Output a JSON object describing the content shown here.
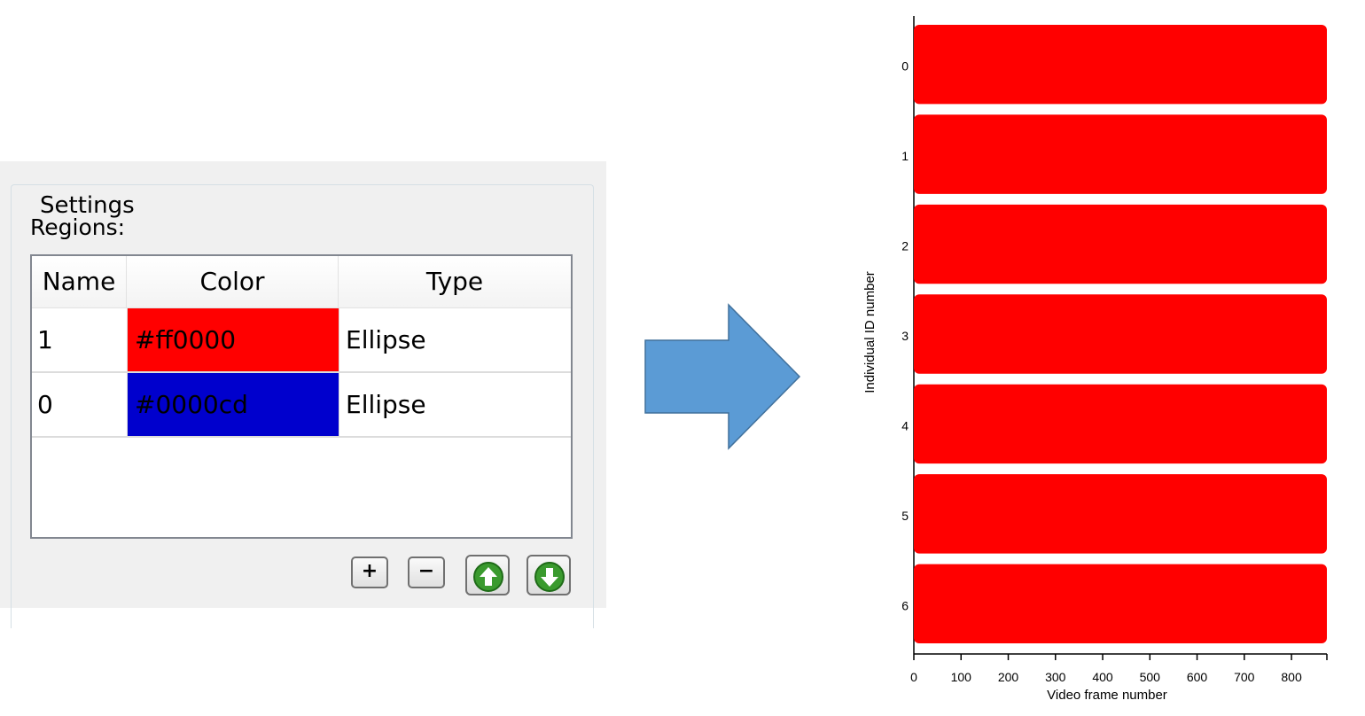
{
  "settings": {
    "group_title": "Settings",
    "regions_label": "Regions:",
    "table": {
      "columns": [
        "Name",
        "Color",
        "Type"
      ],
      "rows": [
        {
          "name": "1",
          "color": "#ff0000",
          "type": "Ellipse"
        },
        {
          "name": "0",
          "color": "#0000cd",
          "type": "Ellipse"
        }
      ]
    },
    "buttons": {
      "add": "+",
      "remove": "−",
      "move_up_icon": "arrow-up-icon",
      "move_down_icon": "arrow-down-icon"
    }
  },
  "arrow": {
    "color": "#5b9bd5",
    "icon": "right-arrow-icon"
  },
  "chart_data": {
    "type": "bar",
    "orientation": "horizontal",
    "categories": [
      "0",
      "1",
      "2",
      "3",
      "4",
      "5",
      "6"
    ],
    "values": [
      875,
      875,
      875,
      875,
      875,
      875,
      875
    ],
    "bar_start": 0,
    "color": "#ff0000",
    "xlabel": "Video frame number",
    "ylabel": "Individual ID number",
    "xlim": [
      0,
      875
    ],
    "xticks": [
      "0",
      "100",
      "200",
      "300",
      "400",
      "500",
      "600",
      "700",
      "800"
    ],
    "grid": false
  }
}
